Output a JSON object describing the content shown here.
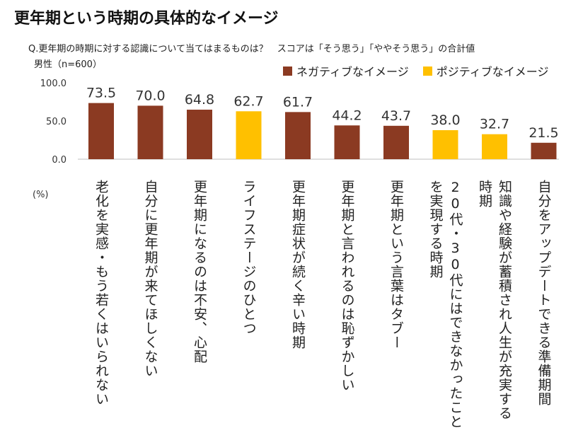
{
  "title": "更年期という時期の具体的なイメージ",
  "subtitle": "Q.更年期の時期に対する認識について当てはまるものは？　スコアは「そう思う」「ややそう思う」の合計値",
  "sample_note": "男性（n=600）",
  "unit": "(%)",
  "legend": {
    "negative": "ネガティブなイメージ",
    "positive": "ポジティブなイメージ"
  },
  "colors": {
    "negative": "#8B3A22",
    "positive": "#FFC000"
  },
  "chart_data": {
    "type": "bar",
    "title": "更年期という時期の具体的なイメージ",
    "ylim": [
      0,
      100
    ],
    "yticks": [
      "0.0",
      "50.0",
      "100.0"
    ],
    "grid": false,
    "legend_position": "top-right",
    "categories": [
      "老化を実感・もう若くはいられない",
      "自分に更年期が来てほしくない",
      "更年期になるのは不安、心配",
      "ライフステージのひとつ",
      "更年期症状が続く辛い時期",
      "更年期と言われるのは恥ずかしい",
      "更年期という言葉はタブー",
      "20代・30代にはできなかったことを実現する時期",
      "知識や経験が蓄積され人生が充実する時期",
      "自分をアップデートできる準備期間"
    ],
    "values": [
      73.5,
      70.0,
      64.8,
      62.7,
      61.7,
      44.2,
      43.7,
      38.0,
      32.7,
      21.5
    ],
    "value_labels": [
      "73.5",
      "70.0",
      "64.8",
      "62.7",
      "61.7",
      "44.2",
      "43.7",
      "38.0",
      "32.7",
      "21.5"
    ],
    "group": [
      "negative",
      "negative",
      "negative",
      "positive",
      "negative",
      "negative",
      "negative",
      "positive",
      "positive",
      "negative"
    ]
  }
}
